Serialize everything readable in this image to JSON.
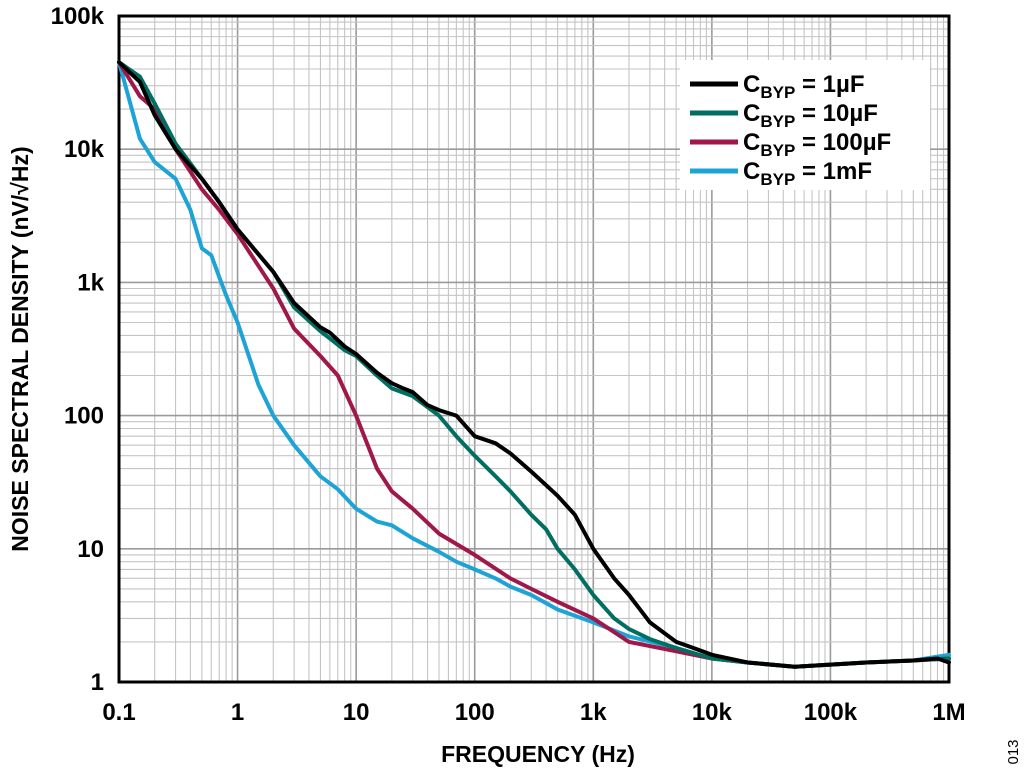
{
  "figure_id": "013",
  "chart_data": {
    "type": "line",
    "title": "",
    "xlabel": "FREQUENCY (Hz)",
    "ylabel": "NOISE SPECTRAL DENSITY (nV/√Hz)",
    "xscale": "log",
    "yscale": "log",
    "xlim": [
      0.1,
      1000000
    ],
    "ylim": [
      1,
      100000
    ],
    "grid": true,
    "legend_position": "top-right",
    "x_ticks": [
      {
        "value": 0.1,
        "label": "0.1"
      },
      {
        "value": 1,
        "label": "1"
      },
      {
        "value": 10,
        "label": "10"
      },
      {
        "value": 100,
        "label": "100"
      },
      {
        "value": 1000,
        "label": "1k"
      },
      {
        "value": 10000,
        "label": "10k"
      },
      {
        "value": 100000,
        "label": "100k"
      },
      {
        "value": 1000000,
        "label": "1M"
      }
    ],
    "y_ticks": [
      {
        "value": 1,
        "label": "1"
      },
      {
        "value": 10,
        "label": "10"
      },
      {
        "value": 100,
        "label": "100"
      },
      {
        "value": 1000,
        "label": "1k"
      },
      {
        "value": 10000,
        "label": "10k"
      },
      {
        "value": 100000,
        "label": "100k"
      }
    ],
    "series": [
      {
        "name": "CBYP = 1µF",
        "label_main": "C",
        "label_sub": "BYP",
        "label_value": " = 1µF",
        "color": "#000000",
        "points": [
          [
            0.1,
            45000
          ],
          [
            0.15,
            32000
          ],
          [
            0.2,
            18000
          ],
          [
            0.3,
            10000
          ],
          [
            0.5,
            6000
          ],
          [
            0.7,
            4000
          ],
          [
            1,
            2500
          ],
          [
            2,
            1200
          ],
          [
            3,
            700
          ],
          [
            5,
            460
          ],
          [
            6,
            420
          ],
          [
            8,
            330
          ],
          [
            10,
            290
          ],
          [
            15,
            210
          ],
          [
            20,
            175
          ],
          [
            25,
            160
          ],
          [
            30,
            150
          ],
          [
            40,
            120
          ],
          [
            50,
            110
          ],
          [
            70,
            100
          ],
          [
            100,
            70
          ],
          [
            150,
            62
          ],
          [
            200,
            52
          ],
          [
            300,
            38
          ],
          [
            400,
            30
          ],
          [
            500,
            25
          ],
          [
            700,
            18
          ],
          [
            1000,
            10
          ],
          [
            1500,
            6
          ],
          [
            2000,
            4.5
          ],
          [
            3000,
            2.8
          ],
          [
            5000,
            2
          ],
          [
            7000,
            1.8
          ],
          [
            10000,
            1.6
          ],
          [
            20000,
            1.4
          ],
          [
            50000,
            1.3
          ],
          [
            100000,
            1.35
          ],
          [
            200000,
            1.4
          ],
          [
            500000,
            1.45
          ],
          [
            800000,
            1.5
          ],
          [
            1000000,
            1.4
          ]
        ]
      },
      {
        "name": "CBYP = 10µF",
        "label_main": "C",
        "label_sub": "BYP",
        "label_value": " = 10µF",
        "color": "#006e60",
        "points": [
          [
            0.1,
            45000
          ],
          [
            0.15,
            35000
          ],
          [
            0.2,
            22000
          ],
          [
            0.3,
            11000
          ],
          [
            0.5,
            6000
          ],
          [
            0.7,
            4000
          ],
          [
            1,
            2500
          ],
          [
            2,
            1200
          ],
          [
            3,
            650
          ],
          [
            5,
            430
          ],
          [
            6,
            380
          ],
          [
            8,
            310
          ],
          [
            10,
            280
          ],
          [
            15,
            200
          ],
          [
            20,
            160
          ],
          [
            30,
            140
          ],
          [
            50,
            100
          ],
          [
            70,
            70
          ],
          [
            100,
            50
          ],
          [
            150,
            35
          ],
          [
            200,
            27
          ],
          [
            300,
            18
          ],
          [
            400,
            14
          ],
          [
            500,
            10
          ],
          [
            700,
            7
          ],
          [
            1000,
            4.5
          ],
          [
            1500,
            3
          ],
          [
            2000,
            2.5
          ],
          [
            3000,
            2.1
          ],
          [
            5000,
            1.8
          ],
          [
            10000,
            1.5
          ],
          [
            20000,
            1.4
          ],
          [
            50000,
            1.3
          ],
          [
            100000,
            1.35
          ],
          [
            200000,
            1.4
          ],
          [
            500000,
            1.45
          ],
          [
            1000000,
            1.5
          ]
        ]
      },
      {
        "name": "CBYP = 100µF",
        "label_main": "C",
        "label_sub": "BYP",
        "label_value": " = 100µF",
        "color": "#a0174a",
        "points": [
          [
            0.1,
            45000
          ],
          [
            0.15,
            25000
          ],
          [
            0.2,
            20000
          ],
          [
            0.3,
            10000
          ],
          [
            0.5,
            5000
          ],
          [
            0.7,
            3500
          ],
          [
            1,
            2300
          ],
          [
            2,
            900
          ],
          [
            3,
            450
          ],
          [
            5,
            280
          ],
          [
            7,
            200
          ],
          [
            10,
            100
          ],
          [
            15,
            40
          ],
          [
            20,
            27
          ],
          [
            30,
            20
          ],
          [
            50,
            13
          ],
          [
            100,
            9
          ],
          [
            200,
            6
          ],
          [
            300,
            5
          ],
          [
            500,
            4
          ],
          [
            1000,
            3
          ],
          [
            2000,
            2
          ],
          [
            5000,
            1.7
          ],
          [
            10000,
            1.5
          ],
          [
            20000,
            1.4
          ],
          [
            50000,
            1.3
          ],
          [
            100000,
            1.35
          ],
          [
            200000,
            1.4
          ],
          [
            500000,
            1.45
          ],
          [
            1000000,
            1.5
          ]
        ]
      },
      {
        "name": "CBYP = 1mF",
        "label_main": "C",
        "label_sub": "BYP",
        "label_value": " = 1mF",
        "color": "#1ea3d6",
        "points": [
          [
            0.1,
            45000
          ],
          [
            0.15,
            12000
          ],
          [
            0.2,
            8000
          ],
          [
            0.3,
            6000
          ],
          [
            0.4,
            3500
          ],
          [
            0.5,
            1800
          ],
          [
            0.6,
            1600
          ],
          [
            0.7,
            1100
          ],
          [
            0.8,
            800
          ],
          [
            1,
            500
          ],
          [
            1.5,
            170
          ],
          [
            2,
            100
          ],
          [
            3,
            60
          ],
          [
            5,
            35
          ],
          [
            7,
            28
          ],
          [
            10,
            20
          ],
          [
            15,
            16
          ],
          [
            20,
            15
          ],
          [
            30,
            12
          ],
          [
            50,
            9.5
          ],
          [
            70,
            8
          ],
          [
            100,
            7
          ],
          [
            150,
            6
          ],
          [
            200,
            5.2
          ],
          [
            300,
            4.5
          ],
          [
            500,
            3.5
          ],
          [
            1000,
            2.8
          ],
          [
            2000,
            2.2
          ],
          [
            5000,
            1.8
          ],
          [
            10000,
            1.5
          ],
          [
            20000,
            1.4
          ],
          [
            50000,
            1.3
          ],
          [
            100000,
            1.35
          ],
          [
            200000,
            1.4
          ],
          [
            500000,
            1.45
          ],
          [
            1000000,
            1.6
          ]
        ]
      }
    ]
  }
}
